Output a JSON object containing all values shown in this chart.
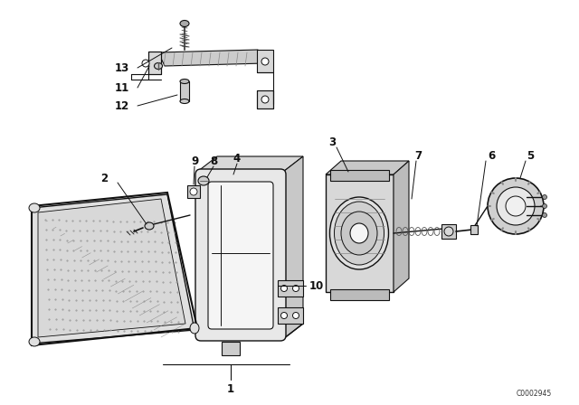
{
  "bg_color": "#ffffff",
  "line_color": "#111111",
  "fig_width": 6.4,
  "fig_height": 4.48,
  "dpi": 100,
  "watermark": "C0002945"
}
